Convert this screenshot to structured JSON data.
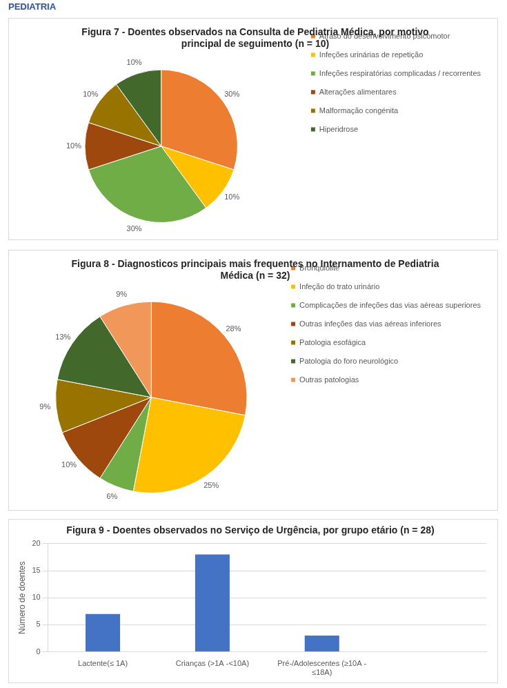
{
  "header": {
    "title": "PEDIATRIA"
  },
  "chart_data": [
    {
      "type": "pie",
      "title": "Figura 7 - Doentes observados na Consulta de Pediatria Médica, por motivo principal de seguimento (n = 10)",
      "categories": [
        "Atraso do desenvolvimento psicomotor",
        "Infeções urinárias de repetição",
        "Infeções respiratórias complicadas / recorrentes",
        "Alterações alimentares",
        "Malformação congénita",
        "Hiperidrose"
      ],
      "values": [
        30,
        10,
        30,
        10,
        10,
        10
      ],
      "value_labels": [
        "30%",
        "10%",
        "30%",
        "10%",
        "10%",
        "10%"
      ],
      "colors": [
        "#ED7D31",
        "#FFC000",
        "#70AD47",
        "#9E480E",
        "#997300",
        "#43682B"
      ],
      "legend": "right",
      "data_labels": true
    },
    {
      "type": "pie",
      "title": "Figura 8 - Diagnosticos principais mais frequentes no Internamento de Pediatria Médica (n = 32)",
      "categories": [
        "Bronquiolite",
        "Infeção do trato urinário",
        "Complicações de infeções das vias aéreas superiores",
        "Outras infeções das vias aéreas inferiores",
        "Patologia esofágica",
        "Patologia do foro neurológico",
        "Outras patologias"
      ],
      "values": [
        28,
        25,
        6,
        10,
        9,
        13,
        9
      ],
      "value_labels": [
        "28%",
        "25%",
        "6%",
        "10%",
        "9%",
        "13%",
        "9%"
      ],
      "colors": [
        "#ED7D31",
        "#FFC000",
        "#70AD47",
        "#9E480E",
        "#997300",
        "#43682B",
        "#F1975A"
      ],
      "legend": "right",
      "data_labels": true
    },
    {
      "type": "bar",
      "title": "Figura 9 - Doentes observados no Serviço de Urgência, por grupo etário (n = 28)",
      "categories": [
        "Lactente(≤ 1A)",
        "Crianças (>1A -<10A)",
        "Pré-/Adolescentes (≥10A - ≤18A)",
        null
      ],
      "values": [
        7,
        18,
        3,
        null
      ],
      "color": "#4472c4",
      "y_label": "Número de doentes",
      "ylim": [
        0,
        20
      ],
      "yticks": [
        0,
        5,
        10,
        15,
        20
      ],
      "grid": true
    }
  ]
}
